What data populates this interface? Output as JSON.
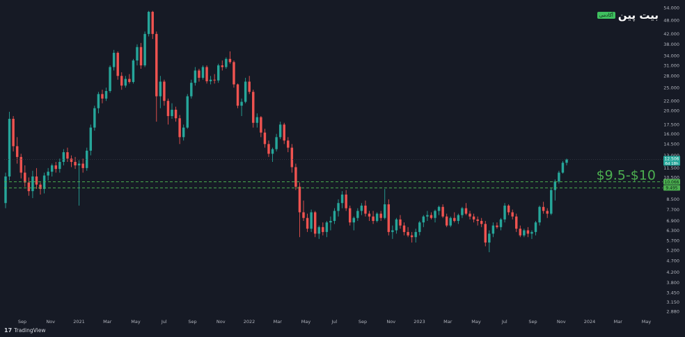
{
  "brand": {
    "name": "بیت پین",
    "badge": "آکادمی"
  },
  "footer": {
    "logo_text": "TradingView"
  },
  "chart_data": {
    "type": "candlestick",
    "timeframe": "weekly",
    "x_ticks": [
      "Sep",
      "Nov",
      "2021",
      "Mar",
      "May",
      "Jul",
      "Sep",
      "Nov",
      "2022",
      "Mar",
      "May",
      "Jul",
      "Sep",
      "Nov",
      "2023",
      "Mar",
      "May",
      "Jul",
      "Sep",
      "Nov",
      "2024",
      "Mar",
      "May"
    ],
    "y_ticks": [
      "54.000",
      "48.000",
      "42.000",
      "38.000",
      "34.000",
      "31.000",
      "28.000",
      "25.000",
      "22.000",
      "20.000",
      "17.500",
      "16.000",
      "14.500",
      "13.000",
      "11.500",
      "10.500",
      "8.500",
      "7.700",
      "6.900",
      "6.300",
      "5.700",
      "5.200",
      "4.700",
      "4.200",
      "3.800",
      "3.450",
      "3.150",
      "2.880"
    ],
    "y_scale": "log",
    "ylim": [
      2.75,
      56
    ],
    "last_price": {
      "label": "12.506",
      "countdown": "6d 18h",
      "value": 12.506
    },
    "levels": [
      {
        "label": "10.066",
        "value": 10.066
      },
      {
        "label": "9.495",
        "value": 9.495
      }
    ],
    "annotation": "$9.5-$10",
    "colors": {
      "up": "#26a69a",
      "down": "#ef5350",
      "zone": "#4caf50",
      "background": "#161a25",
      "text": "#b2b5be"
    },
    "candles": [
      [
        8.2,
        11.0,
        7.8,
        10.6
      ],
      [
        10.6,
        19.8,
        10.2,
        18.5
      ],
      [
        18.5,
        19.0,
        13.5,
        14.2
      ],
      [
        14.2,
        15.5,
        12.0,
        12.8
      ],
      [
        12.8,
        13.2,
        10.4,
        11.0
      ],
      [
        11.0,
        11.8,
        9.6,
        10.0
      ],
      [
        10.0,
        10.5,
        8.8,
        9.2
      ],
      [
        9.2,
        11.2,
        8.6,
        10.6
      ],
      [
        10.6,
        11.5,
        9.4,
        9.8
      ],
      [
        9.8,
        10.0,
        8.9,
        9.4
      ],
      [
        9.4,
        11.0,
        9.0,
        10.7
      ],
      [
        10.7,
        11.5,
        10.2,
        11.1
      ],
      [
        11.1,
        12.0,
        10.6,
        11.8
      ],
      [
        11.8,
        12.2,
        11.0,
        11.4
      ],
      [
        11.4,
        12.6,
        11.0,
        12.2
      ],
      [
        12.2,
        13.8,
        11.8,
        13.4
      ],
      [
        13.4,
        14.0,
        12.2,
        12.6
      ],
      [
        12.6,
        13.0,
        11.6,
        12.2
      ],
      [
        12.2,
        12.8,
        11.4,
        11.8
      ],
      [
        11.8,
        12.4,
        8.0,
        12.0
      ],
      [
        12.0,
        12.6,
        11.0,
        11.5
      ],
      [
        11.5,
        14.0,
        11.2,
        13.6
      ],
      [
        13.6,
        17.5,
        13.0,
        17.0
      ],
      [
        17.0,
        21.0,
        16.5,
        20.5
      ],
      [
        20.5,
        24.0,
        19.5,
        23.5
      ],
      [
        23.5,
        24.5,
        21.5,
        22.5
      ],
      [
        22.5,
        25.0,
        22.0,
        24.2
      ],
      [
        24.2,
        31.0,
        23.8,
        30.5
      ],
      [
        30.5,
        36.0,
        29.5,
        35.0
      ],
      [
        35.0,
        35.5,
        27.0,
        28.0
      ],
      [
        28.0,
        29.0,
        24.5,
        25.5
      ],
      [
        25.5,
        28.0,
        25.0,
        27.2
      ],
      [
        27.2,
        28.5,
        26.0,
        26.4
      ],
      [
        26.4,
        33.0,
        26.0,
        32.5
      ],
      [
        32.5,
        38.0,
        31.0,
        37.0
      ],
      [
        37.0,
        38.5,
        30.0,
        31.0
      ],
      [
        31.0,
        43.0,
        30.5,
        42.0
      ],
      [
        42.0,
        52.5,
        41.0,
        52.0
      ],
      [
        52.0,
        52.5,
        40.0,
        42.0
      ],
      [
        42.0,
        43.0,
        18.0,
        23.0
      ],
      [
        23.0,
        28.0,
        20.5,
        26.5
      ],
      [
        26.5,
        27.0,
        21.0,
        22.0
      ],
      [
        22.0,
        22.5,
        17.5,
        19.0
      ],
      [
        19.0,
        21.5,
        18.5,
        20.2
      ],
      [
        20.2,
        20.8,
        18.0,
        18.6
      ],
      [
        18.6,
        19.2,
        14.5,
        15.5
      ],
      [
        15.5,
        17.5,
        15.0,
        17.0
      ],
      [
        17.0,
        23.5,
        16.8,
        23.0
      ],
      [
        23.0,
        27.0,
        22.5,
        26.2
      ],
      [
        26.2,
        30.5,
        25.5,
        29.5
      ],
      [
        29.5,
        30.0,
        26.5,
        27.5
      ],
      [
        27.5,
        31.0,
        27.0,
        30.5
      ],
      [
        30.5,
        31.0,
        26.0,
        26.6
      ],
      [
        26.6,
        28.0,
        25.8,
        27.0
      ],
      [
        27.0,
        28.5,
        26.0,
        26.8
      ],
      [
        26.8,
        31.5,
        26.2,
        31.0
      ],
      [
        31.0,
        32.5,
        29.5,
        30.5
      ],
      [
        30.5,
        33.5,
        30.0,
        33.0
      ],
      [
        33.0,
        35.5,
        31.5,
        32.0
      ],
      [
        32.0,
        32.5,
        25.0,
        25.8
      ],
      [
        25.8,
        26.0,
        20.5,
        21.0
      ],
      [
        21.0,
        22.5,
        19.0,
        21.8
      ],
      [
        21.8,
        27.5,
        21.5,
        26.5
      ],
      [
        26.5,
        28.0,
        23.5,
        24.0
      ],
      [
        24.0,
        24.5,
        17.0,
        17.8
      ],
      [
        17.8,
        19.5,
        17.0,
        18.8
      ],
      [
        18.8,
        19.0,
        15.5,
        16.2
      ],
      [
        16.2,
        16.8,
        14.0,
        14.5
      ],
      [
        14.5,
        15.0,
        12.8,
        13.2
      ],
      [
        13.2,
        14.0,
        12.2,
        13.8
      ],
      [
        13.8,
        16.0,
        13.5,
        15.5
      ],
      [
        15.5,
        18.0,
        15.2,
        17.5
      ],
      [
        17.5,
        17.8,
        14.5,
        15.0
      ],
      [
        15.0,
        15.5,
        13.4,
        14.0
      ],
      [
        14.0,
        14.5,
        11.0,
        11.6
      ],
      [
        11.6,
        12.0,
        9.3,
        9.6
      ],
      [
        9.6,
        10.0,
        5.9,
        7.5
      ],
      [
        7.5,
        8.4,
        6.9,
        7.1
      ],
      [
        7.1,
        7.4,
        6.2,
        6.4
      ],
      [
        6.4,
        7.7,
        6.2,
        7.5
      ],
      [
        7.5,
        7.6,
        5.9,
        6.1
      ],
      [
        6.1,
        6.6,
        5.8,
        6.5
      ],
      [
        6.5,
        6.8,
        6.0,
        6.2
      ],
      [
        6.2,
        6.9,
        5.9,
        6.8
      ],
      [
        6.8,
        7.2,
        6.3,
        6.9
      ],
      [
        6.9,
        7.8,
        6.7,
        7.6
      ],
      [
        7.6,
        8.5,
        7.2,
        8.2
      ],
      [
        8.2,
        9.2,
        7.8,
        8.9
      ],
      [
        8.9,
        9.3,
        7.6,
        7.8
      ],
      [
        7.8,
        8.0,
        6.6,
        6.8
      ],
      [
        6.8,
        7.2,
        6.3,
        7.1
      ],
      [
        7.1,
        7.8,
        6.9,
        7.6
      ],
      [
        7.6,
        8.2,
        7.3,
        8.0
      ],
      [
        8.0,
        8.4,
        7.2,
        7.4
      ],
      [
        7.4,
        7.6,
        6.9,
        7.2
      ],
      [
        7.2,
        7.6,
        6.7,
        6.9
      ],
      [
        6.9,
        7.5,
        6.8,
        7.4
      ],
      [
        7.4,
        7.6,
        6.9,
        7.1
      ],
      [
        7.1,
        9.4,
        7.0,
        8.1
      ],
      [
        8.1,
        8.5,
        6.0,
        6.2
      ],
      [
        6.2,
        6.6,
        5.8,
        6.3
      ],
      [
        6.3,
        7.1,
        6.1,
        7.0
      ],
      [
        7.0,
        7.3,
        6.4,
        6.6
      ],
      [
        6.6,
        6.8,
        6.0,
        6.2
      ],
      [
        6.2,
        6.5,
        5.9,
        6.0
      ],
      [
        6.0,
        6.2,
        5.6,
        5.9
      ],
      [
        5.9,
        6.4,
        5.6,
        6.2
      ],
      [
        6.2,
        6.9,
        6.0,
        6.8
      ],
      [
        6.8,
        7.3,
        6.5,
        7.2
      ],
      [
        7.2,
        7.6,
        6.9,
        7.3
      ],
      [
        7.3,
        7.5,
        7.0,
        7.1
      ],
      [
        7.1,
        7.7,
        6.8,
        7.6
      ],
      [
        7.6,
        8.0,
        7.3,
        7.9
      ],
      [
        7.9,
        8.1,
        7.1,
        7.2
      ],
      [
        7.2,
        7.4,
        6.5,
        6.6
      ],
      [
        6.6,
        7.2,
        6.5,
        7.1
      ],
      [
        7.1,
        7.5,
        6.8,
        6.9
      ],
      [
        6.9,
        7.4,
        6.7,
        7.3
      ],
      [
        7.3,
        7.9,
        7.1,
        7.8
      ],
      [
        7.8,
        8.2,
        7.3,
        7.4
      ],
      [
        7.4,
        7.6,
        7.0,
        7.2
      ],
      [
        7.2,
        7.4,
        6.8,
        7.0
      ],
      [
        7.0,
        7.2,
        6.6,
        6.9
      ],
      [
        6.9,
        7.1,
        6.5,
        6.7
      ],
      [
        6.7,
        6.9,
        5.4,
        5.6
      ],
      [
        5.6,
        6.3,
        5.1,
        6.1
      ],
      [
        6.1,
        6.8,
        5.9,
        6.6
      ],
      [
        6.6,
        6.8,
        6.4,
        6.5
      ],
      [
        6.5,
        7.1,
        6.3,
        7.0
      ],
      [
        7.0,
        8.2,
        6.8,
        8.0
      ],
      [
        8.0,
        8.1,
        7.3,
        7.5
      ],
      [
        7.5,
        7.7,
        7.0,
        7.2
      ],
      [
        7.2,
        7.4,
        6.2,
        6.4
      ],
      [
        6.4,
        6.6,
        5.9,
        6.0
      ],
      [
        6.0,
        6.4,
        5.9,
        6.3
      ],
      [
        6.3,
        6.5,
        5.9,
        6.1
      ],
      [
        6.1,
        6.3,
        5.8,
        6.2
      ],
      [
        6.2,
        6.9,
        6.0,
        6.8
      ],
      [
        6.8,
        8.0,
        6.6,
        7.9
      ],
      [
        7.9,
        8.3,
        7.4,
        7.6
      ],
      [
        7.6,
        7.8,
        7.1,
        7.4
      ],
      [
        7.4,
        9.5,
        7.3,
        9.3
      ],
      [
        9.3,
        10.3,
        8.4,
        10.1
      ],
      [
        10.1,
        11.2,
        9.9,
        11.0
      ],
      [
        11.0,
        12.3,
        10.9,
        12.1
      ],
      [
        12.1,
        12.6,
        11.8,
        12.5
      ]
    ]
  }
}
